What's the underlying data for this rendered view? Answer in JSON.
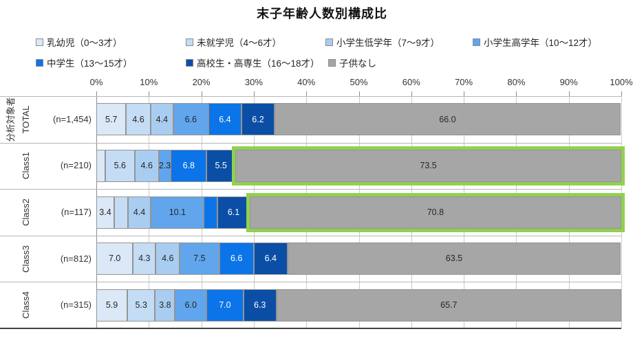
{
  "chart_data": {
    "type": "bar",
    "variant": "horizontal-stacked",
    "title": "末子年齢人数別構成比",
    "x_axis": {
      "min": 0,
      "max": 100,
      "tick_labels": [
        "0%",
        "10%",
        "20%",
        "30%",
        "40%",
        "50%",
        "60%",
        "70%",
        "80%",
        "90%",
        "100%"
      ],
      "grid": true
    },
    "category_group_label": "分析対象者",
    "categories": [
      {
        "label": "TOTAL",
        "n_label": "(n=1,454)"
      },
      {
        "label": "Class1",
        "n_label": "(n=210)"
      },
      {
        "label": "Class2",
        "n_label": "(n=117)"
      },
      {
        "label": "Class3",
        "n_label": "(n=812)"
      },
      {
        "label": "Class4",
        "n_label": "(n=315)"
      }
    ],
    "series": [
      {
        "name": "乳幼児（0〜3才）",
        "color": "#dbe8f7",
        "label_color": "#262626",
        "values": [
          5.7,
          1.7,
          3.4,
          7.0,
          5.9
        ],
        "labels": [
          "5.7",
          "",
          "3.4",
          "7.0",
          "5.9"
        ]
      },
      {
        "name": "未就学児（4〜6才）",
        "color": "#c5dcf5",
        "label_color": "#262626",
        "values": [
          4.6,
          5.6,
          2.6,
          4.3,
          5.3
        ],
        "labels": [
          "4.6",
          "5.6",
          "",
          "4.3",
          "5.3"
        ]
      },
      {
        "name": "小学生低学年（7〜9才）",
        "color": "#a9cdf0",
        "label_color": "#262626",
        "values": [
          4.4,
          4.6,
          4.4,
          4.6,
          3.8
        ],
        "labels": [
          "4.4",
          "4.6",
          "4.4",
          "4.6",
          "3.8"
        ]
      },
      {
        "name": "小学生高学年（10〜12才）",
        "color": "#61a6ec",
        "label_color": "#262626",
        "values": [
          6.6,
          2.3,
          10.1,
          7.5,
          6.0
        ],
        "labels": [
          "6.6",
          "2.3",
          "10.1",
          "7.5",
          "6.0"
        ]
      },
      {
        "name": "中学生（13〜15才）",
        "color": "#0b74e8",
        "label_color": "#ffffff",
        "values": [
          6.4,
          6.8,
          2.6,
          6.6,
          7.0
        ],
        "labels": [
          "6.4",
          "6.8",
          "",
          "6.6",
          "7.0"
        ]
      },
      {
        "name": "高校生・高専生（16〜18才）",
        "color": "#0b4ea6",
        "label_color": "#ffffff",
        "values": [
          6.2,
          5.5,
          6.1,
          6.4,
          6.3
        ],
        "labels": [
          "6.2",
          "5.5",
          "6.1",
          "6.4",
          "6.3"
        ]
      },
      {
        "name": "子供なし",
        "color": "#a6a6a6",
        "label_color": "#262626",
        "values": [
          66.0,
          73.5,
          70.8,
          63.5,
          65.7
        ],
        "labels": [
          "66.0",
          "73.5",
          "70.8",
          "63.5",
          "65.7"
        ]
      }
    ],
    "highlights": {
      "color": "#92d050",
      "items": [
        {
          "row_index": 1,
          "series_index": 6
        },
        {
          "row_index": 2,
          "series_index": 6
        }
      ]
    },
    "legend_position": "top-left"
  }
}
